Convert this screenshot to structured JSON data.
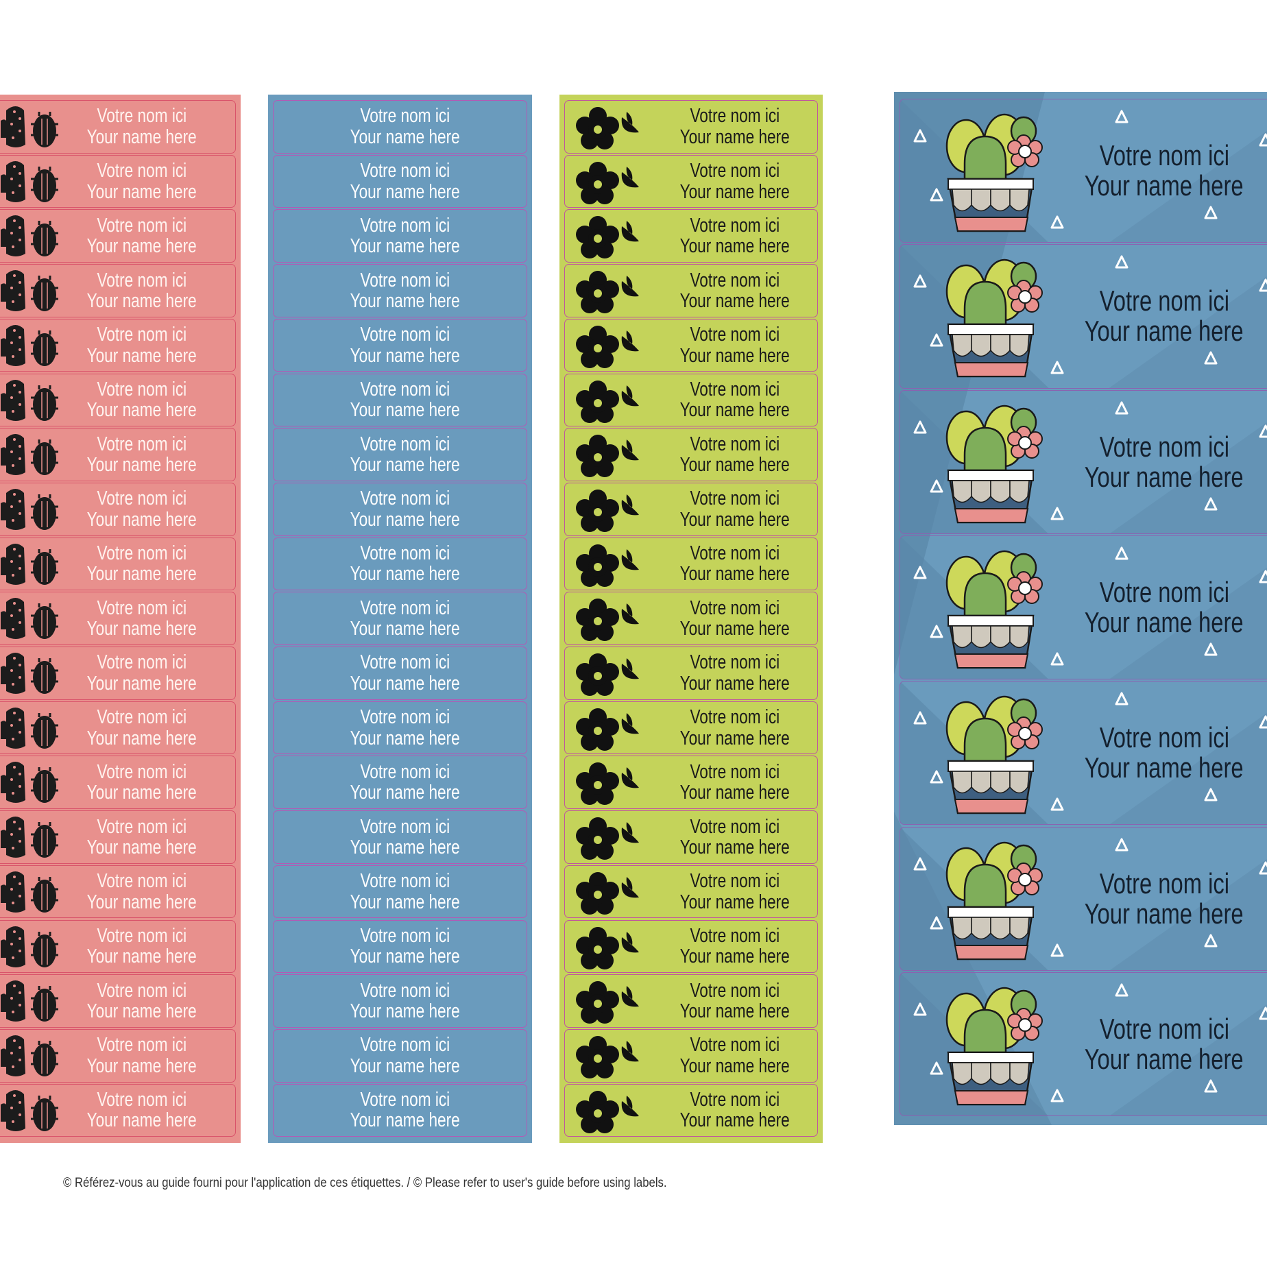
{
  "sheets": [
    {
      "id": "pink",
      "label_count": 19,
      "line1": "Votre nom ici",
      "line2": "Your name here",
      "background": "#e8908d",
      "label_border": "#d9536a",
      "text_color": "#fff4f0",
      "icon": "cactus-pair-icon"
    },
    {
      "id": "blue",
      "label_count": 19,
      "line1": "Votre nom ici",
      "line2": "Your name here",
      "background": "#6a9bbd",
      "label_border": "#b25ab5",
      "text_color": "#ffffff",
      "icon": ""
    },
    {
      "id": "green",
      "label_count": 19,
      "line1": "Votre nom ici",
      "line2": "Your name here",
      "background": "#c4d35a",
      "label_border": "#c0569e",
      "text_color": "#1a1a1a",
      "icon": "flower-leaf-icon"
    },
    {
      "id": "cactus-pot",
      "label_count": 7,
      "line1": "Votre nom ici",
      "line2": "Your name here",
      "background": "#6a9bbd",
      "label_border": "#8a63b0",
      "text_color": "#14202e",
      "icon": "potted-cactus-icon"
    }
  ],
  "footer": "© Référez-vous au guide fourni pour l'application de ces étiquettes. / © Please refer to user's guide before using labels."
}
